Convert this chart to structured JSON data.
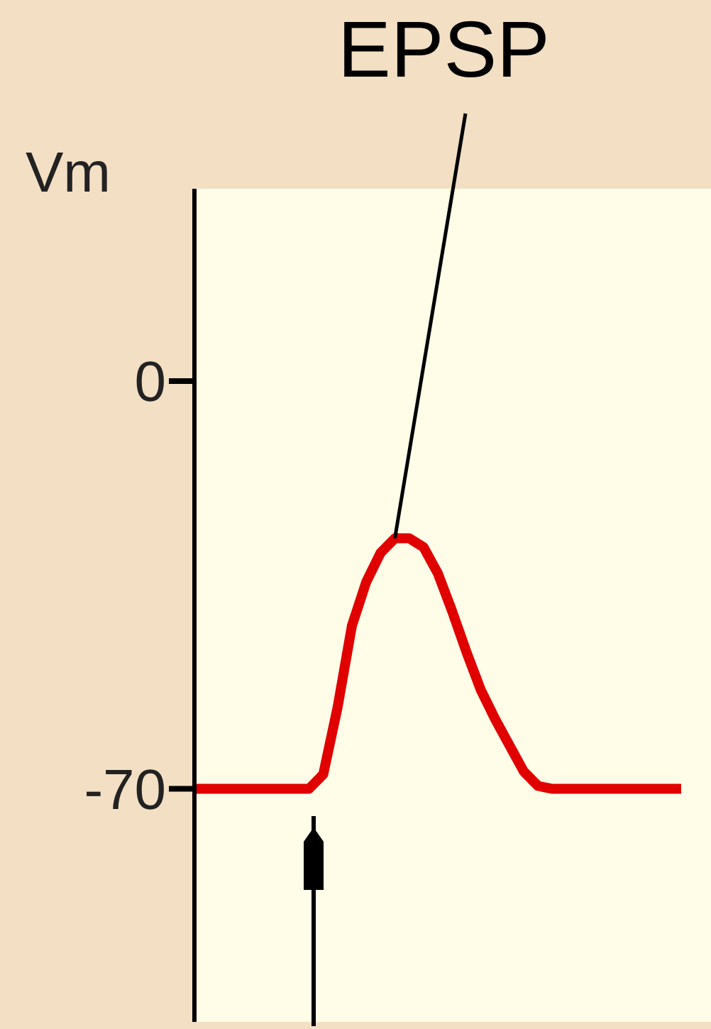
{
  "chart_data": {
    "type": "line",
    "ylabel": "Vm",
    "annotations": [
      "EPSP"
    ],
    "categories": [
      null,
      null,
      null,
      null,
      null,
      null,
      null,
      null,
      null,
      null,
      null,
      null,
      null,
      null,
      null,
      null,
      null,
      null,
      null,
      null,
      null,
      null,
      null,
      null,
      null,
      null,
      null,
      null,
      null,
      null,
      null,
      null,
      null,
      null,
      null
    ],
    "series": [
      {
        "color": "#e00000",
        "values": [
          -70,
          -70,
          -70,
          -70,
          -70,
          -70,
          -70,
          -70,
          -70,
          -67.5,
          -56,
          -42,
          -34.5,
          -29.5,
          -27,
          -27,
          -28.5,
          -33,
          -39.5,
          -46.5,
          -53,
          -58,
          -62.5,
          -67,
          -69.5,
          -70,
          -70,
          -70,
          -70,
          -70,
          -70,
          -70,
          -70,
          -70,
          -70
        ]
      }
    ],
    "ylim": [
      -110,
      33
    ],
    "yticks": [
      0,
      -70
    ],
    "tick_labels": "y",
    "marker": "none",
    "line_style": "solid"
  }
}
